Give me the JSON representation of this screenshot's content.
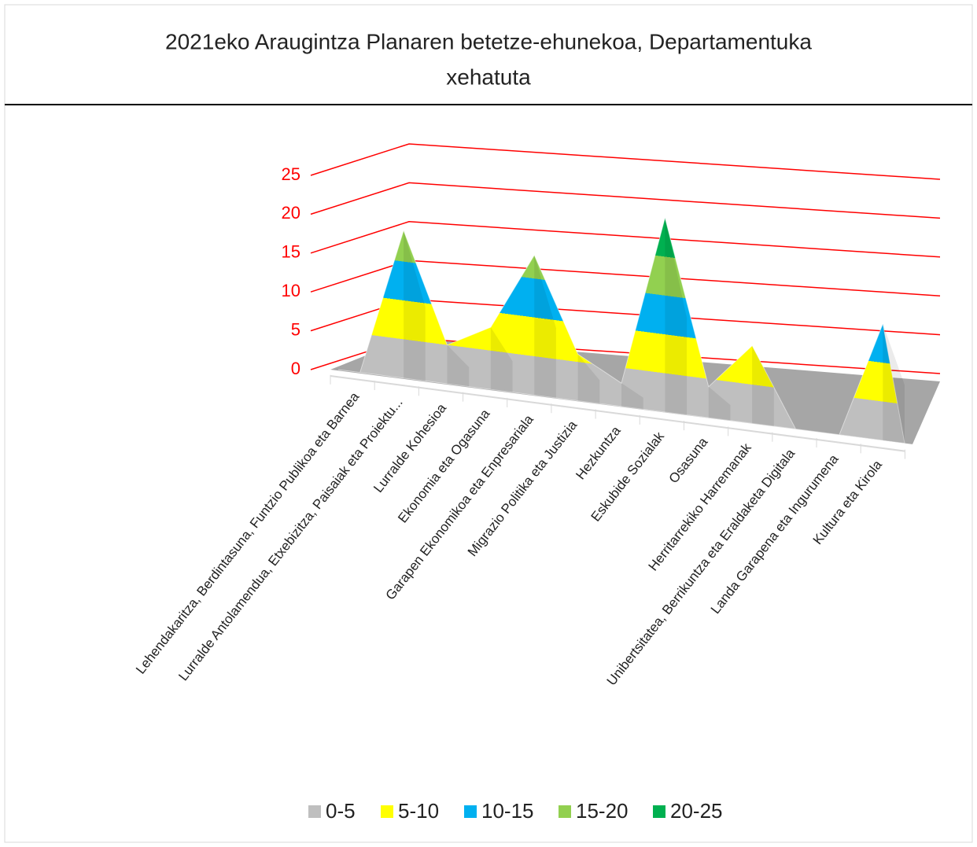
{
  "chart_data": {
    "type": "surface",
    "title": [
      "2021eko Araugintza Planaren betetze-ehunekoa,  Departamentuka",
      "xehatuta"
    ],
    "categories": [
      "Lehendakaritza, Berdintasuna, Funtzio Publikoa eta Barnea",
      "Lurralde Antolamendua, Etxebizitza, Paisaiak eta Proiektu...",
      "Lurralde Kohesioa",
      "Ekonomia eta Ogasuna",
      "Garapen Ekonomikoa eta Enpresariala",
      "Migrazio Politika eta Justizia",
      "Hezkuntza",
      "Eskubide Sozialak",
      "Osasuna",
      "Herritarrekiko Harremanak",
      "Unibertsitatea, Berrikuntza eta Eraldaketa Digitala",
      "Landa Garapena eta Ingurumena",
      "Kultura eta Kirola"
    ],
    "values": [
      0,
      19,
      5,
      8,
      18,
      6,
      3,
      25,
      4,
      10,
      0,
      0,
      15
    ],
    "ylim": [
      0,
      25
    ],
    "yticks": [
      0,
      5,
      10,
      15,
      20,
      25
    ],
    "grid": true,
    "grid_color": "#ff0000",
    "legend": {
      "position": "bottom",
      "series": [
        {
          "name": "0-5",
          "color": "#bfbfbf"
        },
        {
          "name": "5-10",
          "color": "#ffff00"
        },
        {
          "name": "10-15",
          "color": "#00b0f0"
        },
        {
          "name": "15-20",
          "color": "#92d050"
        },
        {
          "name": "20-25",
          "color": "#00b050"
        }
      ]
    }
  }
}
